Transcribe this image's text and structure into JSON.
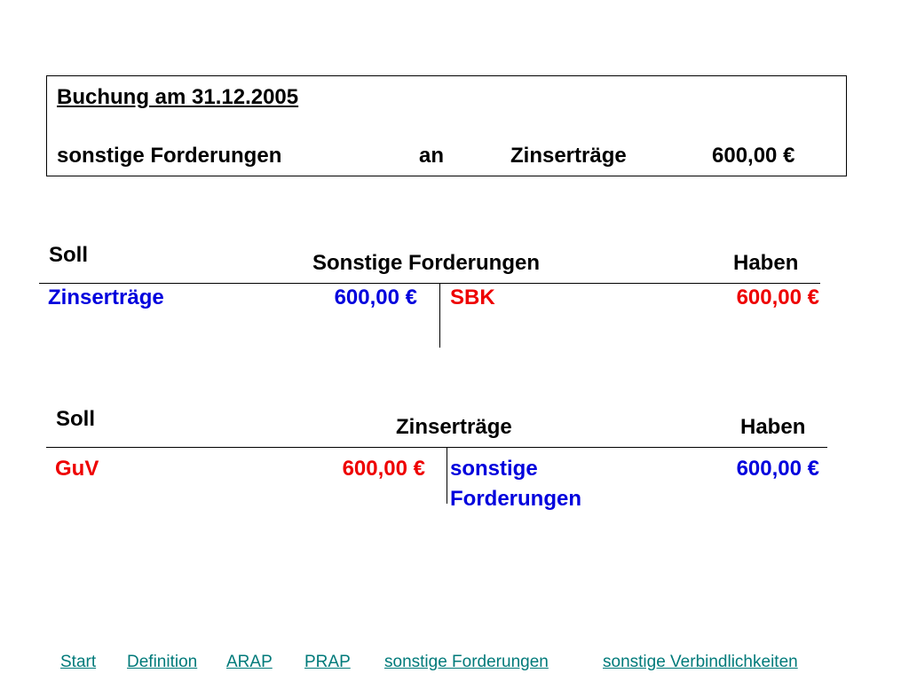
{
  "booking": {
    "title": "Buchung am 31.12.2005",
    "debit_account": "sonstige Forderungen",
    "connector": "an",
    "credit_account": "Zinserträge",
    "amount": "600,00 €"
  },
  "colors": {
    "blue": "#0000dd",
    "red": "#ee0000",
    "link": "#007a7a"
  },
  "accounts": [
    {
      "soll_label": "Soll",
      "name": "Sonstige Forderungen",
      "haben_label": "Haben",
      "debit": {
        "label": "Zinserträge",
        "amount": "600,00 €"
      },
      "credit": {
        "label": "SBK",
        "amount": "600,00 €"
      }
    },
    {
      "soll_label": "Soll",
      "name": "Zinserträge",
      "haben_label": "Haben",
      "debit": {
        "label": "GuV",
        "amount": "600,00 €"
      },
      "credit": {
        "label_line1": "sonstige",
        "label_line2": "Forderungen",
        "amount": "600,00 €"
      }
    }
  ],
  "nav": [
    "Start",
    "Definition",
    "ARAP",
    "PRAP",
    "sonstige Forderungen",
    "sonstige Verbindlichkeiten"
  ]
}
